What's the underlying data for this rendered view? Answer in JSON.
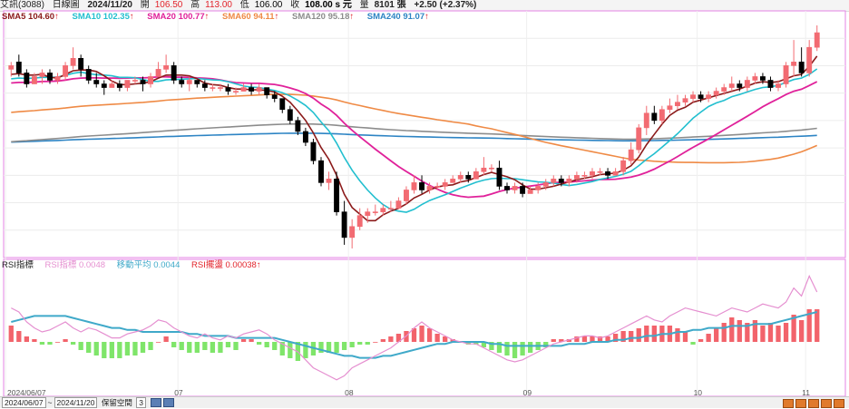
{
  "header": {
    "stock": "艾訊(3088)",
    "period": "日線圖",
    "date": "2024/11/20",
    "open_label": "開",
    "open": "106.50",
    "high_label": "高",
    "high": "113.00",
    "low_label": "低",
    "low": "106.00",
    "close_label": "收",
    "close": "108.00 s 元",
    "volume_label": "量",
    "volume": "8101 張",
    "change": "+2.50 (+2.37%)"
  },
  "legend_price": [
    {
      "label": "SMA5 104.60",
      "color": "#8b1a1a"
    },
    {
      "label": "SMA10 102.35",
      "color": "#22bfcf"
    },
    {
      "label": "SMA20 100.77",
      "color": "#e0219a"
    },
    {
      "label": "SMA60 94.11",
      "color": "#ef8a45"
    },
    {
      "label": "SMA120 95.18",
      "color": "#8c8c8c"
    },
    {
      "label": "SMA240 91.07",
      "color": "#2d84c4"
    }
  ],
  "legend_indicator": {
    "name": "RSI指標",
    "items": [
      {
        "label": "RSI指標 0.0048",
        "color": "#e58fd0"
      },
      {
        "label": "移動平均 0.0044",
        "color": "#3fa9c9"
      },
      {
        "label": "RSI擺盪 0.00038",
        "color": "#e2222a"
      }
    ]
  },
  "colors": {
    "up": "#f26b72",
    "down": "#000000",
    "osc_pos": "#f2636b",
    "osc_neg": "#7fe56a",
    "frame": "#e583e4"
  },
  "footer": {
    "start": "2024/06/07",
    "sep": "~",
    "end": "2024/11/20",
    "keep_label": "保留空間",
    "keep_value": "3"
  },
  "chart_data": {
    "type": "candlestick",
    "x_ticks": [
      "2024/06/07",
      "07",
      "08",
      "09",
      "10",
      "11"
    ],
    "candles": [
      [
        50,
        52,
        48,
        51
      ],
      [
        52,
        54,
        48,
        49
      ],
      [
        49,
        50,
        45,
        46
      ],
      [
        46,
        49,
        46,
        48
      ],
      [
        48,
        50,
        46,
        49
      ],
      [
        49,
        50,
        46,
        47
      ],
      [
        47,
        49,
        46,
        48
      ],
      [
        48,
        52,
        47,
        51
      ],
      [
        51,
        56,
        50,
        53
      ],
      [
        53,
        54,
        48,
        50
      ],
      [
        50,
        51,
        46,
        47
      ],
      [
        47,
        49,
        45,
        46
      ],
      [
        46,
        47,
        43,
        45
      ],
      [
        45,
        47,
        45,
        46
      ],
      [
        46,
        47,
        44,
        45
      ],
      [
        45,
        47,
        44,
        47
      ],
      [
        47,
        48,
        46,
        47
      ],
      [
        47,
        48,
        44,
        46
      ],
      [
        46,
        49,
        45,
        48
      ],
      [
        48,
        52,
        48,
        50
      ],
      [
        50,
        54,
        49,
        51
      ],
      [
        51,
        52,
        46,
        47
      ],
      [
        47,
        48,
        45,
        46
      ],
      [
        46,
        48,
        44,
        47
      ],
      [
        47,
        47,
        45,
        46
      ],
      [
        46,
        47,
        44,
        45
      ],
      [
        45,
        46,
        44,
        45
      ],
      [
        45,
        46,
        44,
        45
      ],
      [
        45,
        46,
        43,
        44
      ],
      [
        44,
        45,
        43,
        44
      ],
      [
        44,
        46,
        44,
        45
      ],
      [
        45,
        46,
        43,
        44
      ],
      [
        44,
        46,
        43,
        45
      ],
      [
        45,
        45,
        42,
        43
      ],
      [
        43,
        44,
        41,
        42
      ],
      [
        42,
        42,
        38,
        39
      ],
      [
        39,
        40,
        35,
        36
      ],
      [
        36,
        37,
        32,
        33
      ],
      [
        33,
        34,
        29,
        30
      ],
      [
        30,
        31,
        24,
        25
      ],
      [
        25,
        26,
        18,
        19
      ],
      [
        19,
        22,
        17,
        20
      ],
      [
        20,
        22,
        10,
        11
      ],
      [
        11,
        14,
        2,
        4
      ],
      [
        4,
        9,
        1,
        7
      ],
      [
        7,
        12,
        6,
        10
      ],
      [
        10,
        12,
        8,
        11
      ],
      [
        11,
        13,
        10,
        11
      ],
      [
        11,
        13,
        10,
        12
      ],
      [
        12,
        14,
        11,
        12
      ],
      [
        12,
        15,
        12,
        14
      ],
      [
        14,
        18,
        13,
        17
      ],
      [
        17,
        21,
        16,
        19
      ],
      [
        19,
        21,
        16,
        17
      ],
      [
        17,
        19,
        16,
        18
      ],
      [
        18,
        19,
        17,
        18
      ],
      [
        18,
        20,
        17,
        19
      ],
      [
        19,
        21,
        19,
        20
      ],
      [
        20,
        22,
        19,
        21
      ],
      [
        21,
        22,
        19,
        20
      ],
      [
        20,
        23,
        20,
        22
      ],
      [
        22,
        26,
        21,
        23
      ],
      [
        23,
        24,
        22,
        23
      ],
      [
        23,
        25,
        17,
        18
      ],
      [
        18,
        19,
        16,
        17
      ],
      [
        17,
        19,
        16,
        18
      ],
      [
        18,
        19,
        15,
        16
      ],
      [
        16,
        18,
        16,
        17
      ],
      [
        17,
        19,
        16,
        18
      ],
      [
        18,
        20,
        17,
        19
      ],
      [
        19,
        21,
        18,
        20
      ],
      [
        20,
        21,
        18,
        19
      ],
      [
        19,
        21,
        18,
        20
      ],
      [
        20,
        22,
        19,
        21
      ],
      [
        21,
        22,
        20,
        21
      ],
      [
        21,
        23,
        20,
        22
      ],
      [
        22,
        23,
        21,
        22
      ],
      [
        22,
        23,
        20,
        21
      ],
      [
        21,
        23,
        21,
        22
      ],
      [
        22,
        26,
        21,
        25
      ],
      [
        25,
        30,
        24,
        28
      ],
      [
        28,
        35,
        27,
        34
      ],
      [
        34,
        40,
        32,
        38
      ],
      [
        38,
        40,
        35,
        36
      ],
      [
        36,
        40,
        35,
        39
      ],
      [
        39,
        42,
        38,
        40
      ],
      [
        40,
        43,
        39,
        41
      ],
      [
        41,
        43,
        40,
        42
      ],
      [
        42,
        44,
        41,
        43
      ],
      [
        43,
        44,
        41,
        42
      ],
      [
        42,
        44,
        41,
        43
      ],
      [
        43,
        45,
        42,
        44
      ],
      [
        44,
        46,
        43,
        45
      ],
      [
        45,
        48,
        44,
        46
      ],
      [
        46,
        47,
        44,
        45
      ],
      [
        45,
        48,
        44,
        47
      ],
      [
        47,
        49,
        46,
        48
      ],
      [
        48,
        49,
        46,
        47
      ],
      [
        47,
        48,
        44,
        45
      ],
      [
        45,
        47,
        44,
        46
      ],
      [
        46,
        52,
        45,
        51
      ],
      [
        51,
        58,
        48,
        52
      ],
      [
        52,
        56,
        48,
        49
      ],
      [
        49,
        58,
        48,
        56
      ],
      [
        56,
        62,
        55,
        60
      ]
    ],
    "rsi": [
      62,
      60,
      55,
      52,
      50,
      51,
      53,
      55,
      52,
      50,
      52,
      51,
      49,
      47,
      47,
      49,
      50,
      51,
      53,
      56,
      55,
      52,
      50,
      48,
      47,
      49,
      47,
      46,
      48,
      47,
      49,
      50,
      51,
      49,
      46,
      44,
      42,
      40,
      36,
      32,
      30,
      28,
      26,
      28,
      32,
      34,
      36,
      38,
      40,
      42,
      45,
      48,
      52,
      55,
      52,
      50,
      48,
      46,
      45,
      44,
      44,
      42,
      40,
      38,
      36,
      35,
      36,
      38,
      40,
      42,
      44,
      45,
      46,
      47,
      48,
      48,
      47,
      48,
      50,
      52,
      54,
      56,
      58,
      56,
      55,
      58,
      60,
      62,
      61,
      60,
      59,
      58,
      60,
      62,
      61,
      60,
      62,
      64,
      63,
      62,
      65,
      72,
      68,
      78,
      70
    ],
    "rsi_ma": [
      55,
      56,
      57,
      58,
      58,
      58,
      58,
      58,
      57,
      56,
      55,
      54,
      53,
      52,
      52,
      51,
      51,
      50,
      50,
      50,
      50,
      50,
      50,
      49,
      49,
      48,
      48,
      48,
      48,
      47,
      47,
      47,
      47,
      47,
      47,
      46,
      45,
      44,
      43,
      42,
      41,
      40,
      39,
      38,
      38,
      37,
      37,
      37,
      38,
      38,
      39,
      40,
      41,
      42,
      43,
      44,
      44,
      45,
      45,
      45,
      45,
      45,
      44,
      44,
      43,
      43,
      43,
      43,
      43,
      43,
      43,
      43,
      44,
      44,
      44,
      45,
      45,
      45,
      46,
      46,
      47,
      47,
      48,
      48,
      49,
      49,
      50,
      50,
      51,
      51,
      52,
      52,
      52,
      53,
      53,
      53,
      54,
      54,
      54,
      55,
      56,
      57,
      58,
      59,
      60
    ],
    "osc": [
      6,
      4,
      2,
      1,
      -1,
      -1,
      0,
      1,
      -1,
      -3,
      -4,
      -5,
      -6,
      -6,
      -6,
      -5,
      -5,
      -4,
      -3,
      0,
      2,
      -2,
      -3,
      -4,
      -4,
      -3,
      -4,
      -4,
      -2,
      -3,
      1,
      1,
      -1,
      -2,
      -3,
      -5,
      -6,
      -7,
      -6,
      -5,
      -4,
      -4,
      -4,
      -3,
      -2,
      -1,
      -1,
      0,
      1,
      2,
      3,
      4,
      5,
      6,
      5,
      3,
      2,
      1,
      0,
      -1,
      -1,
      -2,
      -3,
      -4,
      -5,
      -6,
      -5,
      -4,
      -3,
      -2,
      1,
      1,
      1,
      2,
      2,
      2,
      2,
      2,
      3,
      4,
      4,
      5,
      6,
      6,
      6,
      6,
      5,
      4,
      -1,
      1,
      3,
      5,
      7,
      9,
      8,
      7,
      8,
      6,
      7,
      6,
      7,
      10,
      8,
      12,
      12
    ]
  }
}
